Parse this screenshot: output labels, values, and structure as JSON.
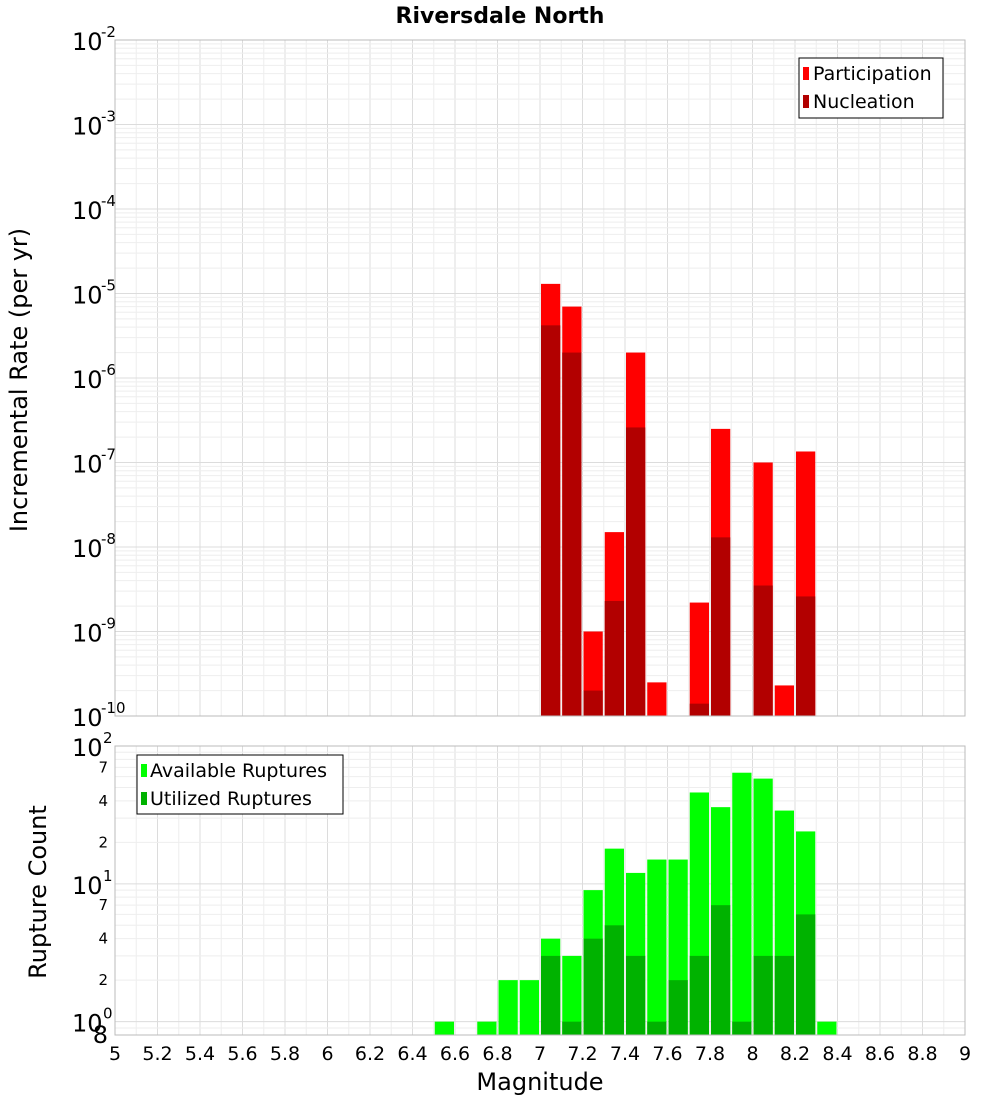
{
  "chart_data": [
    {
      "type": "bar",
      "title": "Riversdale North",
      "xlabel": "",
      "ylabel": "Incremental Rate (per yr)",
      "yscale": "log",
      "xlim": [
        5,
        9
      ],
      "ylim": [
        1e-10,
        0.01
      ],
      "y_tick_labels": [
        {
          "base": "10",
          "exp": "-2"
        },
        {
          "base": "10",
          "exp": "-3"
        },
        {
          "base": "10",
          "exp": "-4"
        },
        {
          "base": "10",
          "exp": "-5"
        },
        {
          "base": "10",
          "exp": "-6"
        },
        {
          "base": "10",
          "exp": "-7"
        },
        {
          "base": "10",
          "exp": "-8"
        },
        {
          "base": "10",
          "exp": "-9"
        },
        {
          "base": "10",
          "exp": "-10"
        }
      ],
      "grid": true,
      "legend_position": "top-right",
      "legend": [
        "Participation",
        "Nucleation"
      ],
      "colors": {
        "Participation": "#ff0000",
        "Nucleation": "#b20000"
      },
      "series": [
        {
          "name": "Participation",
          "x": [
            7.05,
            7.15,
            7.25,
            7.35,
            7.45,
            7.55,
            7.75,
            7.85,
            8.05,
            8.15,
            8.25
          ],
          "values": [
            1.3e-05,
            7e-06,
            1e-09,
            1.5e-08,
            2e-06,
            2.5e-10,
            2.2e-09,
            2.5e-07,
            1e-07,
            2.3e-10,
            1.35e-07
          ]
        },
        {
          "name": "Nucleation",
          "x": [
            7.05,
            7.15,
            7.25,
            7.35,
            7.45,
            7.75,
            7.85,
            8.05,
            8.25
          ],
          "values": [
            4.2e-06,
            2e-06,
            2e-10,
            2.3e-09,
            2.6e-07,
            1.4e-10,
            1.3e-08,
            3.5e-09,
            2.6e-09
          ]
        }
      ]
    },
    {
      "type": "bar",
      "title": "",
      "xlabel": "Magnitude",
      "ylabel": "Rupture Count",
      "yscale": "log",
      "xlim": [
        5,
        9
      ],
      "ylim": [
        0.8,
        100
      ],
      "x_ticks": [
        "5",
        "5.2",
        "5.4",
        "5.6",
        "5.8",
        "6",
        "6.2",
        "6.4",
        "6.6",
        "6.8",
        "7",
        "7.2",
        "7.4",
        "7.6",
        "7.8",
        "8",
        "8.2",
        "8.4",
        "8.6",
        "8.8",
        "9"
      ],
      "y_major_ticks": [
        {
          "value": 100,
          "base": "10",
          "exp": "2"
        },
        {
          "value": 10,
          "base": "10",
          "exp": "1"
        },
        {
          "value": 1,
          "base": "10",
          "exp": "0"
        }
      ],
      "y_minor_ticks": [
        {
          "value": 70,
          "label": "7"
        },
        {
          "value": 40,
          "label": "4"
        },
        {
          "value": 20,
          "label": "2"
        },
        {
          "value": 7,
          "label": "7"
        },
        {
          "value": 4,
          "label": "4"
        },
        {
          "value": 2,
          "label": "2"
        },
        {
          "value": 0.8,
          "label": "8"
        }
      ],
      "grid": true,
      "legend_position": "top-left",
      "legend": [
        "Available Ruptures",
        "Utilized Ruptures"
      ],
      "colors": {
        "Available Ruptures": "#00ff00",
        "Utilized Ruptures": "#00b200"
      },
      "series": [
        {
          "name": "Available Ruptures",
          "x": [
            6.55,
            6.75,
            6.85,
            6.95,
            7.05,
            7.15,
            7.25,
            7.35,
            7.45,
            7.55,
            7.65,
            7.75,
            7.85,
            7.95,
            8.05,
            8.15,
            8.25,
            8.35
          ],
          "values": [
            1,
            1,
            2,
            2,
            4,
            3,
            9,
            18,
            12,
            15,
            15,
            46,
            36,
            64,
            58,
            34,
            24,
            1
          ]
        },
        {
          "name": "Utilized Ruptures",
          "x": [
            7.05,
            7.15,
            7.25,
            7.35,
            7.45,
            7.55,
            7.65,
            7.75,
            7.85,
            7.95,
            8.05,
            8.15,
            8.25
          ],
          "values": [
            3,
            1,
            4,
            5,
            3,
            1,
            2,
            3,
            7,
            1,
            3,
            3,
            6
          ]
        }
      ]
    }
  ]
}
